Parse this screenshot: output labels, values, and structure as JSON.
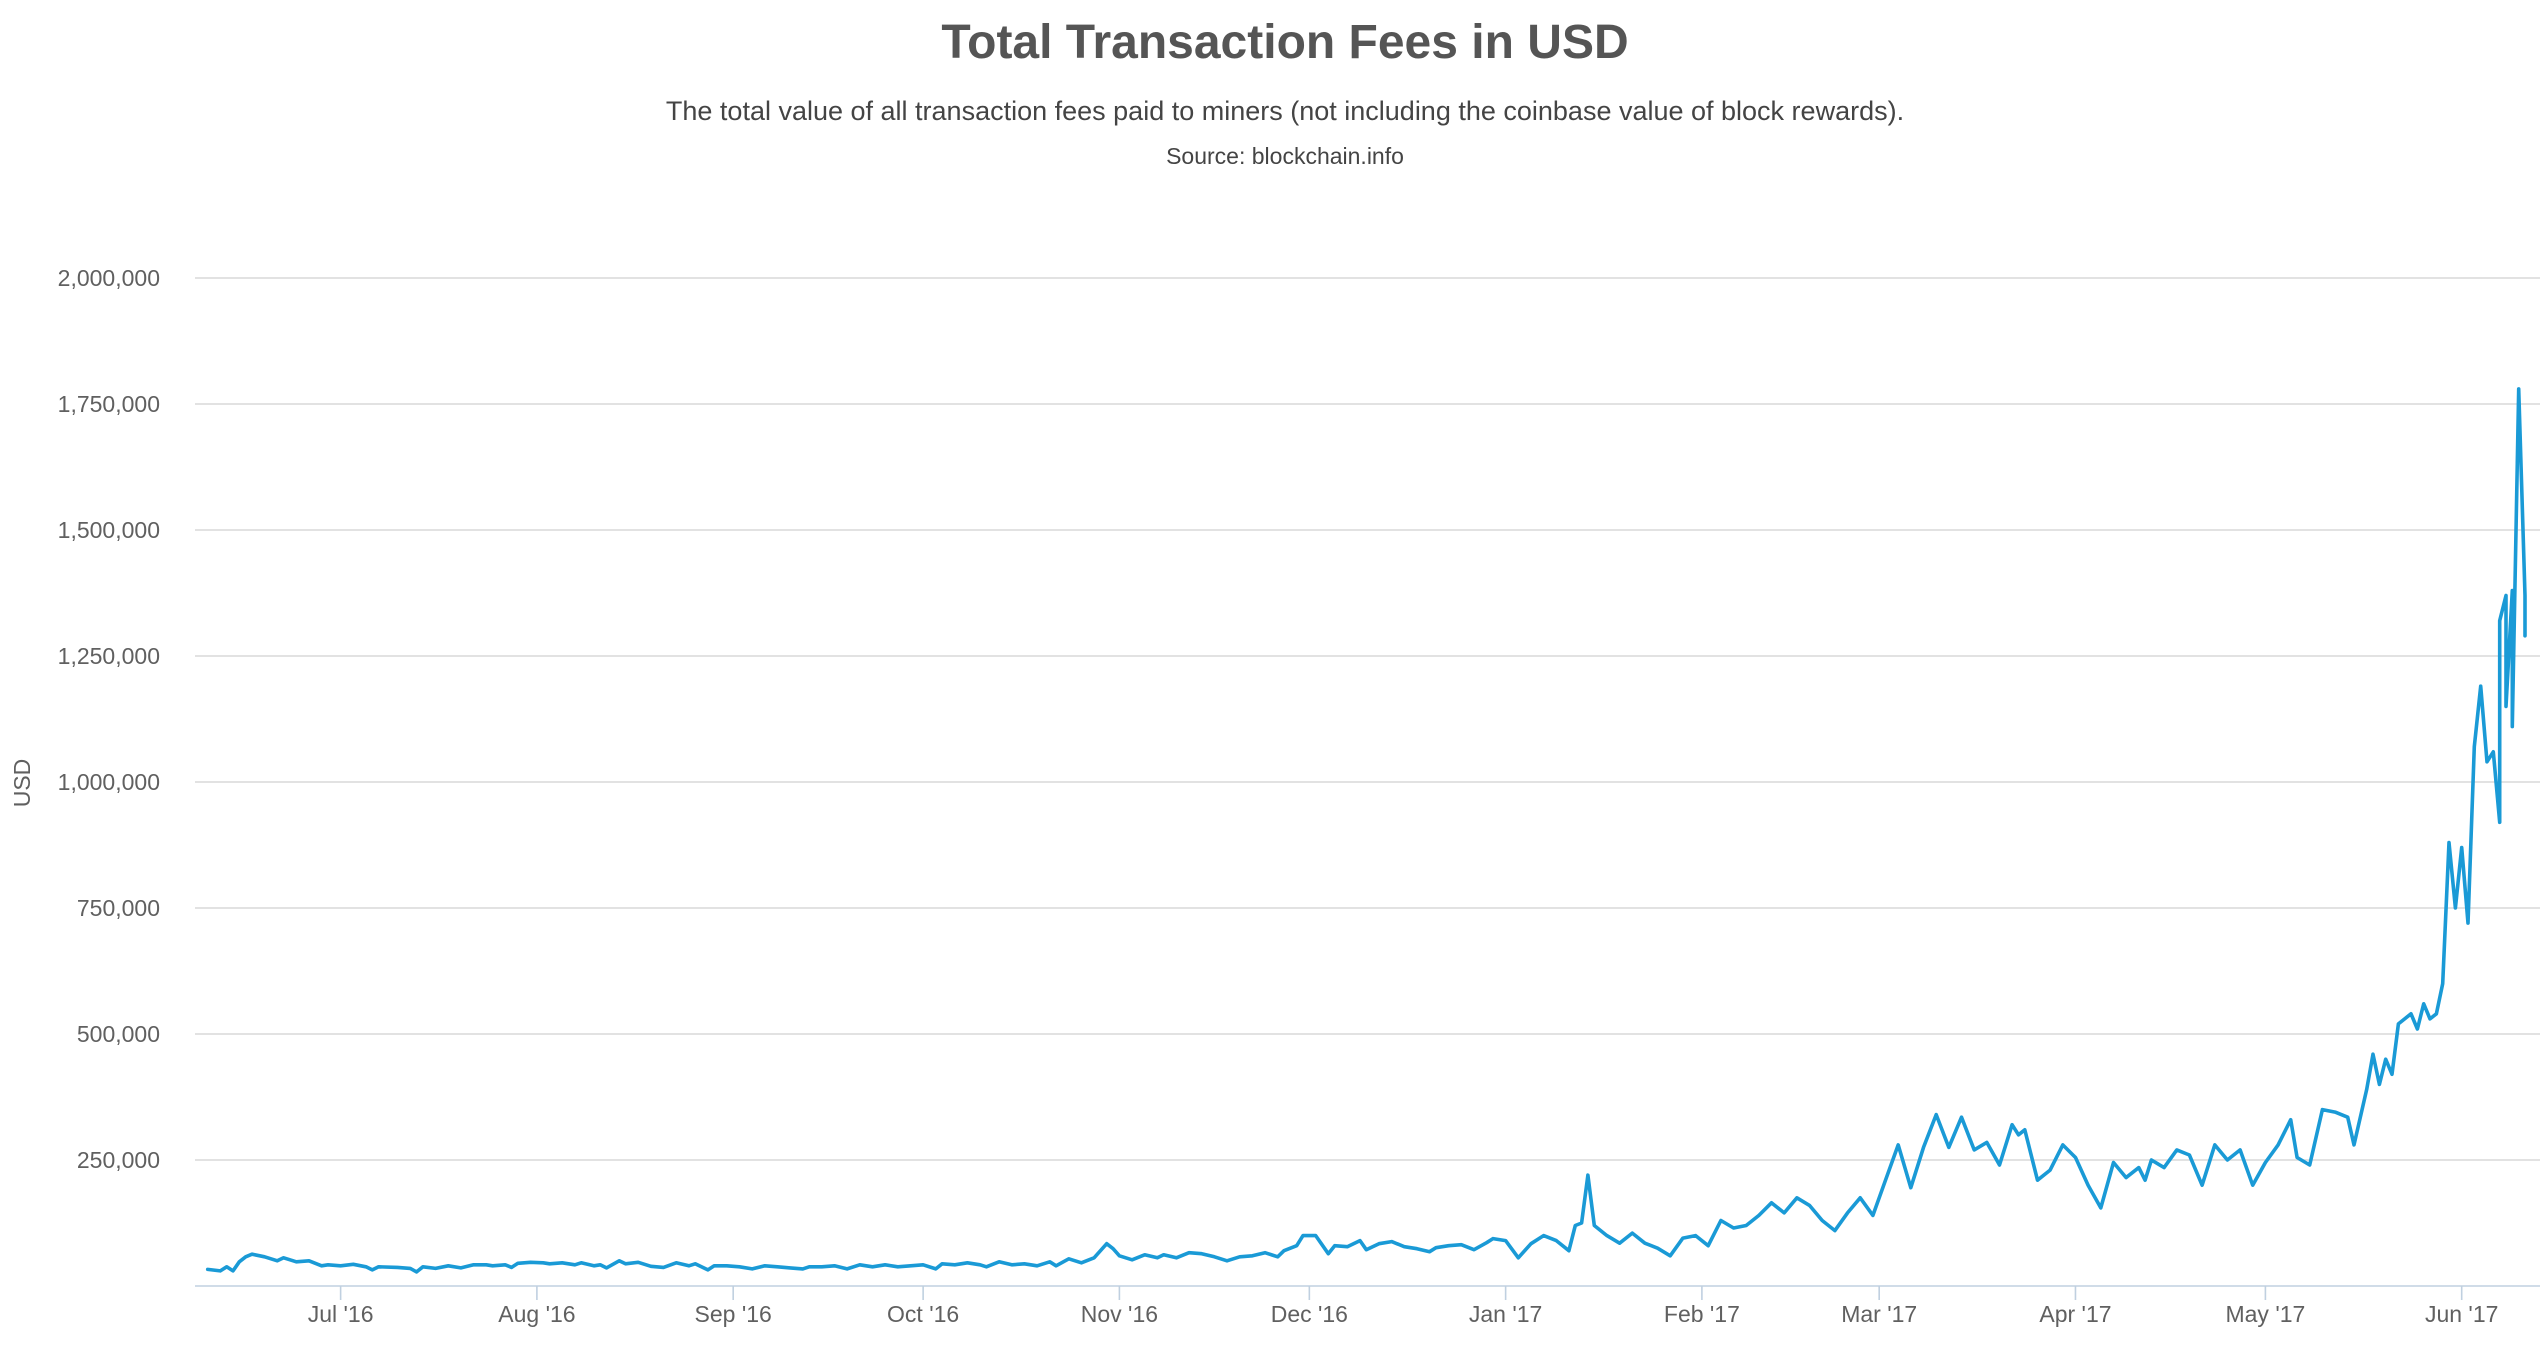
{
  "chart_data": {
    "type": "line",
    "title": "Total Transaction Fees in USD",
    "subtitle": "The total value of all transaction fees paid to miners (not including the coinbase value of block rewards).",
    "source": "Source: blockchain.info",
    "ylabel": "USD",
    "xlabel": "",
    "ylim": [
      0,
      2000000
    ],
    "y_ticks": [
      250000,
      500000,
      750000,
      1000000,
      1250000,
      1500000,
      1750000,
      2000000
    ],
    "y_tick_labels": [
      "250,000",
      "500,000",
      "750,000",
      "1,000,000",
      "1,250,000",
      "1,500,000",
      "1,750,000",
      "2,000,000"
    ],
    "x_range": [
      "2016-06-08",
      "2017-06-11"
    ],
    "x_ticks": [
      "2016-07-01",
      "2016-08-01",
      "2016-09-01",
      "2016-10-01",
      "2016-11-01",
      "2016-12-01",
      "2017-01-01",
      "2017-02-01",
      "2017-03-01",
      "2017-04-01",
      "2017-05-01",
      "2017-06-01"
    ],
    "x_tick_labels": [
      "Jul '16",
      "Aug '16",
      "Sep '16",
      "Oct '16",
      "Nov '16",
      "Dec '16",
      "Jan '17",
      "Feb '17",
      "Mar '17",
      "Apr '17",
      "May '17",
      "Jun '17"
    ],
    "grid": true,
    "legend": "none",
    "color": "#1a9ad6",
    "series": [
      {
        "points": [
          [
            "2016-06-10",
            33000
          ],
          [
            "2016-06-12",
            30000
          ],
          [
            "2016-06-13",
            38000
          ],
          [
            "2016-06-14",
            30000
          ],
          [
            "2016-06-15",
            48000
          ],
          [
            "2016-06-16",
            58000
          ],
          [
            "2016-06-17",
            63000
          ],
          [
            "2016-06-19",
            58000
          ],
          [
            "2016-06-21",
            50000
          ],
          [
            "2016-06-22",
            56000
          ],
          [
            "2016-06-23",
            52000
          ],
          [
            "2016-06-24",
            48000
          ],
          [
            "2016-06-26",
            50000
          ],
          [
            "2016-06-28",
            40000
          ],
          [
            "2016-06-29",
            42000
          ],
          [
            "2016-07-01",
            40000
          ],
          [
            "2016-07-03",
            43000
          ],
          [
            "2016-07-05",
            38000
          ],
          [
            "2016-07-06",
            32000
          ],
          [
            "2016-07-07",
            38000
          ],
          [
            "2016-07-10",
            37000
          ],
          [
            "2016-07-12",
            35000
          ],
          [
            "2016-07-13",
            28000
          ],
          [
            "2016-07-14",
            38000
          ],
          [
            "2016-07-16",
            35000
          ],
          [
            "2016-07-18",
            40000
          ],
          [
            "2016-07-20",
            36000
          ],
          [
            "2016-07-22",
            42000
          ],
          [
            "2016-07-24",
            42000
          ],
          [
            "2016-07-25",
            40000
          ],
          [
            "2016-07-27",
            42000
          ],
          [
            "2016-07-28",
            37000
          ],
          [
            "2016-07-29",
            45000
          ],
          [
            "2016-07-31",
            47000
          ],
          [
            "2016-08-02",
            46000
          ],
          [
            "2016-08-03",
            44000
          ],
          [
            "2016-08-05",
            46000
          ],
          [
            "2016-08-07",
            42000
          ],
          [
            "2016-08-08",
            46000
          ],
          [
            "2016-08-10",
            40000
          ],
          [
            "2016-08-11",
            42000
          ],
          [
            "2016-08-12",
            36000
          ],
          [
            "2016-08-14",
            50000
          ],
          [
            "2016-08-15",
            44000
          ],
          [
            "2016-08-17",
            47000
          ],
          [
            "2016-08-19",
            39000
          ],
          [
            "2016-08-21",
            37000
          ],
          [
            "2016-08-23",
            46000
          ],
          [
            "2016-08-25",
            40000
          ],
          [
            "2016-08-26",
            44000
          ],
          [
            "2016-08-28",
            32000
          ],
          [
            "2016-08-29",
            40000
          ],
          [
            "2016-08-31",
            40000
          ],
          [
            "2016-09-02",
            38000
          ],
          [
            "2016-09-04",
            34000
          ],
          [
            "2016-09-06",
            40000
          ],
          [
            "2016-09-08",
            38000
          ],
          [
            "2016-09-10",
            36000
          ],
          [
            "2016-09-12",
            34000
          ],
          [
            "2016-09-13",
            38000
          ],
          [
            "2016-09-15",
            38000
          ],
          [
            "2016-09-17",
            40000
          ],
          [
            "2016-09-19",
            34000
          ],
          [
            "2016-09-21",
            42000
          ],
          [
            "2016-09-23",
            38000
          ],
          [
            "2016-09-25",
            42000
          ],
          [
            "2016-09-27",
            38000
          ],
          [
            "2016-09-29",
            40000
          ],
          [
            "2016-10-01",
            42000
          ],
          [
            "2016-10-03",
            34000
          ],
          [
            "2016-10-04",
            44000
          ],
          [
            "2016-10-06",
            42000
          ],
          [
            "2016-10-08",
            46000
          ],
          [
            "2016-10-10",
            42000
          ],
          [
            "2016-10-11",
            38000
          ],
          [
            "2016-10-13",
            48000
          ],
          [
            "2016-10-15",
            42000
          ],
          [
            "2016-10-17",
            44000
          ],
          [
            "2016-10-19",
            40000
          ],
          [
            "2016-10-21",
            48000
          ],
          [
            "2016-10-22",
            40000
          ],
          [
            "2016-10-24",
            54000
          ],
          [
            "2016-10-26",
            46000
          ],
          [
            "2016-10-28",
            56000
          ],
          [
            "2016-10-30",
            84000
          ],
          [
            "2016-10-31",
            74000
          ],
          [
            "2016-11-01",
            60000
          ],
          [
            "2016-11-03",
            52000
          ],
          [
            "2016-11-05",
            62000
          ],
          [
            "2016-11-07",
            56000
          ],
          [
            "2016-11-08",
            62000
          ],
          [
            "2016-11-10",
            56000
          ],
          [
            "2016-11-12",
            66000
          ],
          [
            "2016-11-14",
            64000
          ],
          [
            "2016-11-16",
            58000
          ],
          [
            "2016-11-18",
            50000
          ],
          [
            "2016-11-20",
            58000
          ],
          [
            "2016-11-22",
            60000
          ],
          [
            "2016-11-24",
            66000
          ],
          [
            "2016-11-26",
            58000
          ],
          [
            "2016-11-27",
            70000
          ],
          [
            "2016-11-29",
            80000
          ],
          [
            "2016-11-30",
            100000
          ],
          [
            "2016-12-02",
            100000
          ],
          [
            "2016-12-04",
            64000
          ],
          [
            "2016-12-05",
            80000
          ],
          [
            "2016-12-07",
            78000
          ],
          [
            "2016-12-09",
            90000
          ],
          [
            "2016-12-10",
            72000
          ],
          [
            "2016-12-12",
            84000
          ],
          [
            "2016-12-14",
            88000
          ],
          [
            "2016-12-16",
            78000
          ],
          [
            "2016-12-18",
            74000
          ],
          [
            "2016-12-20",
            68000
          ],
          [
            "2016-12-21",
            76000
          ],
          [
            "2016-12-23",
            80000
          ],
          [
            "2016-12-25",
            82000
          ],
          [
            "2016-12-27",
            72000
          ],
          [
            "2016-12-29",
            86000
          ],
          [
            "2016-12-30",
            94000
          ],
          [
            "2017-01-01",
            90000
          ],
          [
            "2017-01-03",
            56000
          ],
          [
            "2017-01-05",
            84000
          ],
          [
            "2017-01-07",
            100000
          ],
          [
            "2017-01-09",
            90000
          ],
          [
            "2017-01-11",
            70000
          ],
          [
            "2017-01-12",
            120000
          ],
          [
            "2017-01-13",
            125000
          ],
          [
            "2017-01-14",
            220000
          ],
          [
            "2017-01-15",
            120000
          ],
          [
            "2017-01-17",
            100000
          ],
          [
            "2017-01-19",
            85000
          ],
          [
            "2017-01-21",
            105000
          ],
          [
            "2017-01-23",
            85000
          ],
          [
            "2017-01-25",
            75000
          ],
          [
            "2017-01-27",
            60000
          ],
          [
            "2017-01-29",
            95000
          ],
          [
            "2017-01-31",
            100000
          ],
          [
            "2017-02-02",
            80000
          ],
          [
            "2017-02-04",
            130000
          ],
          [
            "2017-02-06",
            115000
          ],
          [
            "2017-02-08",
            120000
          ],
          [
            "2017-02-10",
            140000
          ],
          [
            "2017-02-12",
            165000
          ],
          [
            "2017-02-14",
            145000
          ],
          [
            "2017-02-16",
            175000
          ],
          [
            "2017-02-18",
            160000
          ],
          [
            "2017-02-20",
            130000
          ],
          [
            "2017-02-22",
            110000
          ],
          [
            "2017-02-24",
            145000
          ],
          [
            "2017-02-26",
            175000
          ],
          [
            "2017-02-28",
            140000
          ],
          [
            "2017-03-02",
            210000
          ],
          [
            "2017-03-04",
            280000
          ],
          [
            "2017-03-06",
            195000
          ],
          [
            "2017-03-08",
            275000
          ],
          [
            "2017-03-10",
            340000
          ],
          [
            "2017-03-12",
            275000
          ],
          [
            "2017-03-14",
            335000
          ],
          [
            "2017-03-16",
            270000
          ],
          [
            "2017-03-18",
            285000
          ],
          [
            "2017-03-20",
            240000
          ],
          [
            "2017-03-22",
            320000
          ],
          [
            "2017-03-23",
            300000
          ],
          [
            "2017-03-24",
            310000
          ],
          [
            "2017-03-26",
            210000
          ],
          [
            "2017-03-28",
            230000
          ],
          [
            "2017-03-30",
            280000
          ],
          [
            "2017-04-01",
            255000
          ],
          [
            "2017-04-03",
            200000
          ],
          [
            "2017-04-05",
            155000
          ],
          [
            "2017-04-07",
            245000
          ],
          [
            "2017-04-09",
            215000
          ],
          [
            "2017-04-11",
            235000
          ],
          [
            "2017-04-12",
            210000
          ],
          [
            "2017-04-13",
            250000
          ],
          [
            "2017-04-15",
            235000
          ],
          [
            "2017-04-17",
            270000
          ],
          [
            "2017-04-19",
            260000
          ],
          [
            "2017-04-21",
            200000
          ],
          [
            "2017-04-23",
            280000
          ],
          [
            "2017-04-25",
            250000
          ],
          [
            "2017-04-27",
            270000
          ],
          [
            "2017-04-29",
            200000
          ],
          [
            "2017-05-01",
            245000
          ],
          [
            "2017-05-03",
            280000
          ],
          [
            "2017-05-05",
            330000
          ],
          [
            "2017-05-06",
            255000
          ],
          [
            "2017-05-08",
            240000
          ],
          [
            "2017-05-10",
            350000
          ],
          [
            "2017-05-12",
            345000
          ],
          [
            "2017-05-14",
            335000
          ],
          [
            "2017-05-15",
            280000
          ],
          [
            "2017-05-17",
            390000
          ],
          [
            "2017-05-18",
            460000
          ],
          [
            "2017-05-19",
            400000
          ],
          [
            "2017-05-20",
            450000
          ],
          [
            "2017-05-21",
            420000
          ],
          [
            "2017-05-22",
            520000
          ],
          [
            "2017-05-24",
            540000
          ],
          [
            "2017-05-25",
            510000
          ],
          [
            "2017-05-26",
            560000
          ],
          [
            "2017-05-27",
            530000
          ],
          [
            "2017-05-28",
            540000
          ],
          [
            "2017-05-29",
            600000
          ],
          [
            "2017-05-30",
            880000
          ],
          [
            "2017-05-31",
            750000
          ],
          [
            "2017-06-01",
            870000
          ],
          [
            "2017-06-02",
            720000
          ],
          [
            "2017-06-03",
            1070000
          ],
          [
            "2017-06-04",
            1190000
          ],
          [
            "2017-06-05",
            1040000
          ],
          [
            "2017-06-06",
            1060000
          ],
          [
            "2017-06-07",
            920000
          ],
          [
            "2017-06-07",
            1320000
          ],
          [
            "2017-06-08",
            1370000
          ],
          [
            "2017-06-08",
            1150000
          ],
          [
            "2017-06-09",
            1380000
          ],
          [
            "2017-06-09",
            1110000
          ],
          [
            "2017-06-10",
            1780000
          ],
          [
            "2017-06-11",
            1370000
          ],
          [
            "2017-06-11",
            1290000
          ]
        ]
      }
    ]
  }
}
